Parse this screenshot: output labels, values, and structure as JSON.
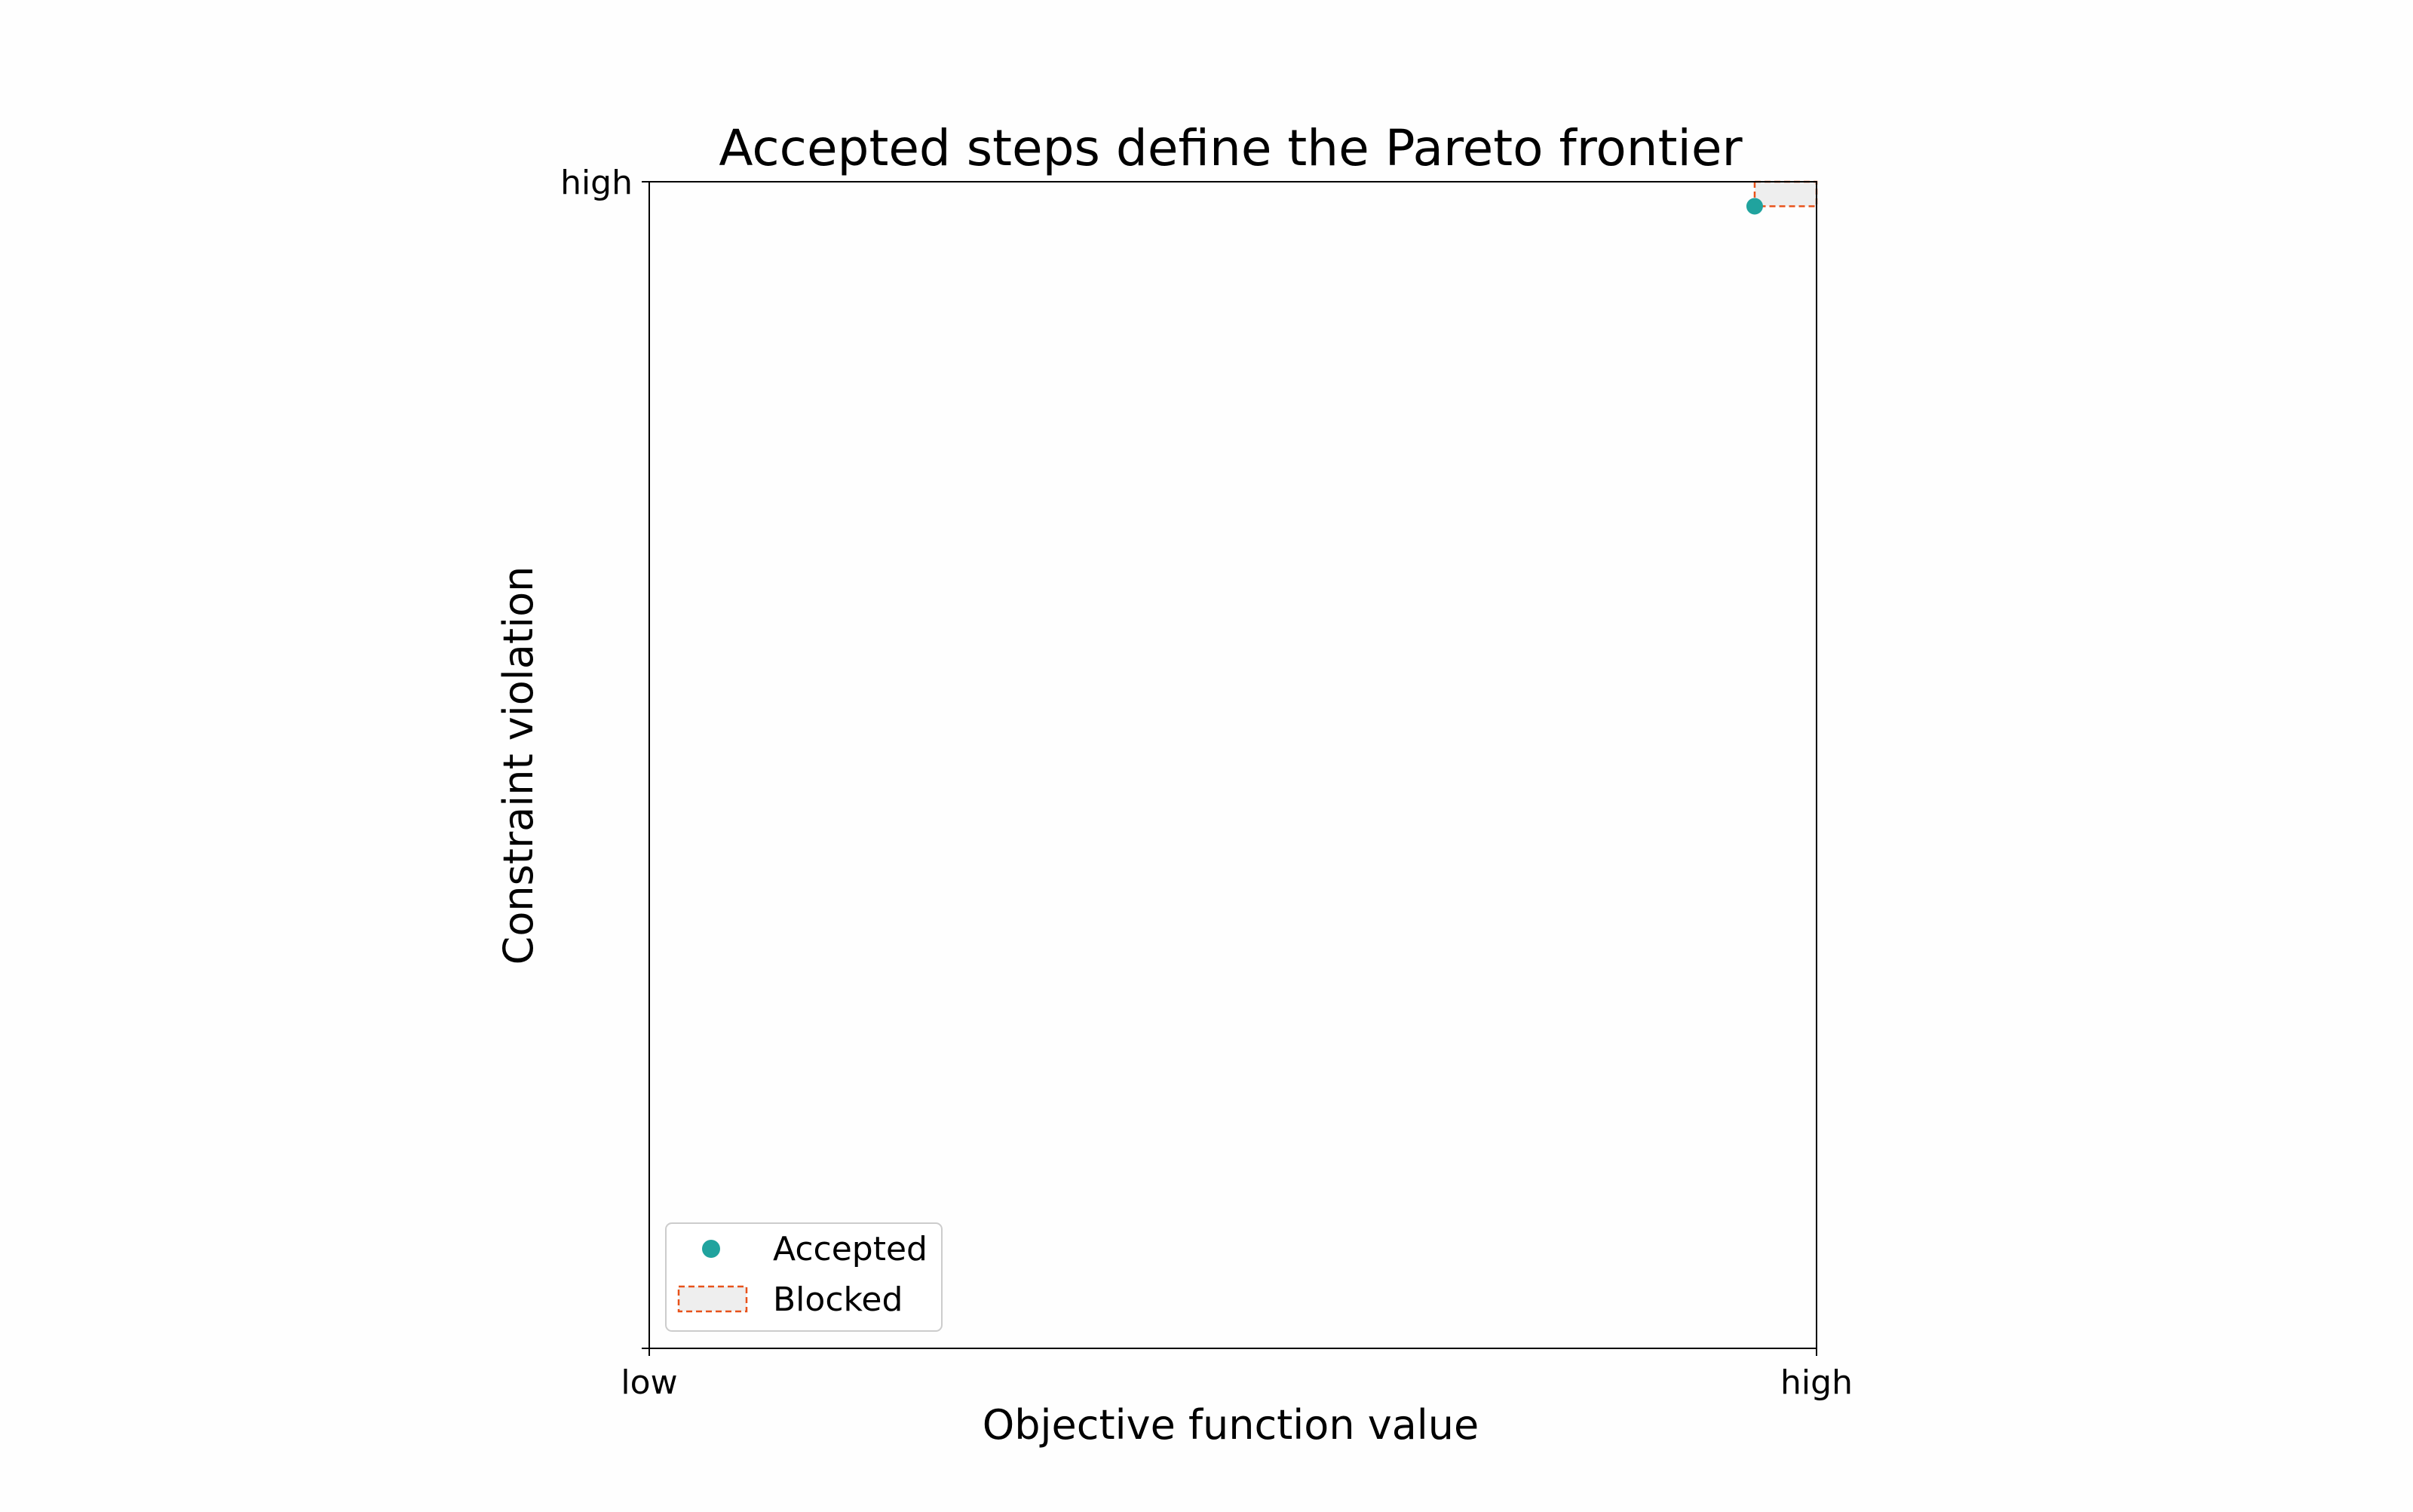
{
  "chart_data": {
    "type": "scatter",
    "title": "Accepted steps define the Pareto frontier",
    "xlabel": "Objective function value",
    "ylabel": "Constraint violation",
    "xlim": [
      0,
      1
    ],
    "ylim": [
      0,
      1
    ],
    "x_ticks": [
      {
        "value": 0,
        "label": "low"
      },
      {
        "value": 1,
        "label": "high"
      }
    ],
    "y_ticks": [
      {
        "value": 1,
        "label": "high"
      }
    ],
    "series": [
      {
        "name": "Accepted",
        "kind": "points",
        "color": "#20a39e",
        "points": [
          {
            "x": 0.947,
            "y": 0.979
          }
        ]
      },
      {
        "name": "Blocked",
        "kind": "regions",
        "fill": "#eeeeee",
        "edge_color": "#e8521a",
        "edge_style": "dashed",
        "regions": [
          {
            "x0": 0.947,
            "x1": 1.0,
            "y0": 0.979,
            "y1": 1.0
          }
        ]
      }
    ],
    "grid": false,
    "legend": {
      "position": "lower-left",
      "entries": [
        "Accepted",
        "Blocked"
      ]
    }
  }
}
